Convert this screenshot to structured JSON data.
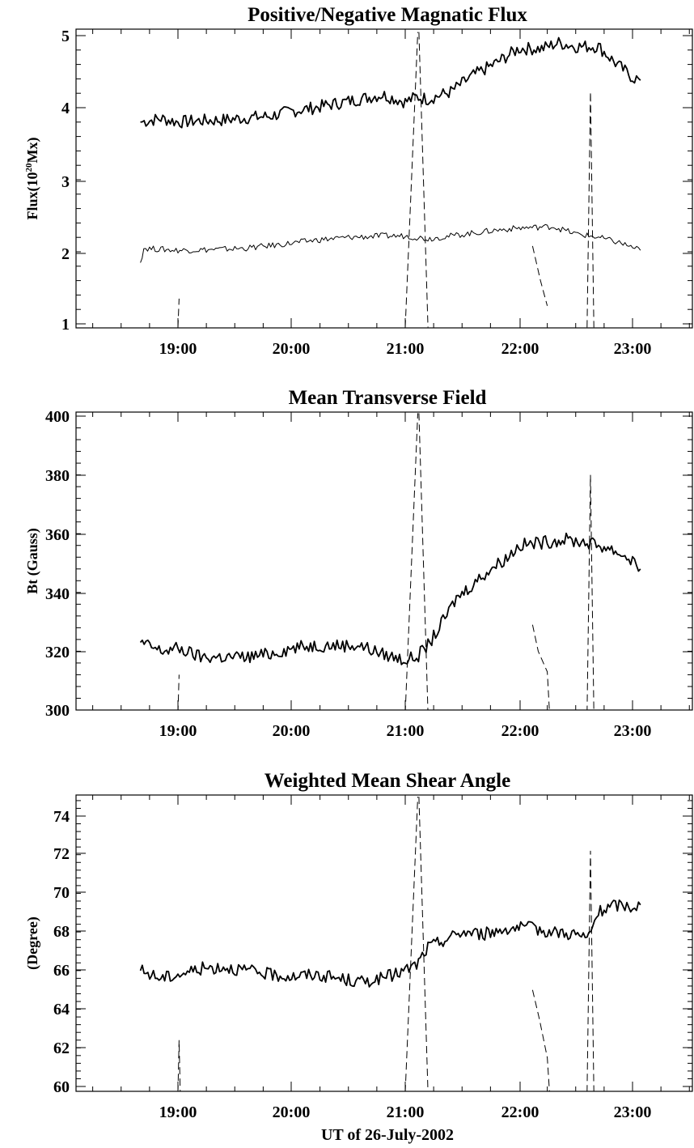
{
  "chart_data": [
    {
      "type": "line",
      "title": "Positive/Negative Magnatic Flux",
      "ylabel_parts": [
        "Flux(10",
        "20",
        "Mx)"
      ],
      "xlabel": "",
      "x_ticklabels": [
        "19:00",
        "20:00",
        "21:00",
        "22:00",
        "23:00"
      ],
      "y_ticklabels": [
        "1",
        "2",
        "3",
        "4",
        "5"
      ],
      "xlim_hours": [
        18.1,
        23.65
      ],
      "ylim": [
        0.95,
        5.05
      ],
      "series": [
        {
          "style": "solid-thick",
          "points": [
            [
              18.67,
              3.8
            ],
            [
              18.85,
              3.85
            ],
            [
              19.0,
              3.8
            ],
            [
              19.2,
              3.82
            ],
            [
              19.4,
              3.83
            ],
            [
              19.6,
              3.86
            ],
            [
              19.8,
              3.88
            ],
            [
              20.0,
              3.95
            ],
            [
              20.2,
              4.0
            ],
            [
              20.4,
              4.06
            ],
            [
              20.6,
              4.12
            ],
            [
              20.8,
              4.18
            ],
            [
              21.0,
              4.08
            ],
            [
              21.1,
              4.15
            ],
            [
              21.2,
              4.12
            ],
            [
              21.4,
              4.22
            ],
            [
              21.6,
              4.45
            ],
            [
              21.8,
              4.62
            ],
            [
              22.0,
              4.82
            ],
            [
              22.2,
              4.82
            ],
            [
              22.35,
              4.9
            ],
            [
              22.5,
              4.85
            ],
            [
              22.7,
              4.85
            ],
            [
              22.85,
              4.62
            ],
            [
              23.0,
              4.42
            ],
            [
              23.07,
              4.38
            ]
          ]
        },
        {
          "style": "solid-thin",
          "points": [
            [
              18.67,
              1.85
            ],
            [
              18.7,
              2.05
            ],
            [
              19.0,
              2.02
            ],
            [
              19.3,
              2.03
            ],
            [
              19.6,
              2.05
            ],
            [
              19.9,
              2.1
            ],
            [
              20.2,
              2.16
            ],
            [
              20.5,
              2.2
            ],
            [
              20.8,
              2.22
            ],
            [
              21.0,
              2.22
            ],
            [
              21.2,
              2.18
            ],
            [
              21.5,
              2.24
            ],
            [
              21.8,
              2.3
            ],
            [
              22.0,
              2.33
            ],
            [
              22.3,
              2.35
            ],
            [
              22.5,
              2.25
            ],
            [
              22.7,
              2.2
            ],
            [
              22.9,
              2.12
            ],
            [
              23.07,
              2.02
            ]
          ]
        },
        {
          "style": "dashed",
          "segments": [
            [
              [
                19.0,
                0.95
              ],
              [
                19.01,
                1.35
              ]
            ],
            [
              [
                21.0,
                0.95
              ],
              [
                21.11,
                5.05
              ]
            ],
            [
              [
                21.12,
                5.05
              ],
              [
                21.2,
                0.95
              ]
            ],
            [
              [
                22.12,
                2.08
              ],
              [
                22.19,
                1.6
              ],
              [
                22.25,
                1.25
              ]
            ],
            [
              [
                22.6,
                0.95
              ],
              [
                22.63,
                4.22
              ],
              [
                22.66,
                0.95
              ]
            ]
          ]
        }
      ]
    },
    {
      "type": "line",
      "title": "Mean Transverse Field",
      "ylabel": "Bt (Gauss)",
      "xlabel": "",
      "x_ticklabels": [
        "19:00",
        "20:00",
        "21:00",
        "22:00",
        "23:00"
      ],
      "y_ticklabels": [
        "300",
        "320",
        "340",
        "360",
        "380",
        "400"
      ],
      "xlim_hours": [
        18.1,
        23.65
      ],
      "ylim": [
        299,
        401
      ],
      "series": [
        {
          "style": "solid",
          "points": [
            [
              18.67,
              323
            ],
            [
              18.85,
              320
            ],
            [
              19.0,
              321
            ],
            [
              19.2,
              318
            ],
            [
              19.4,
              318
            ],
            [
              19.6,
              318
            ],
            [
              19.8,
              319
            ],
            [
              20.0,
              321
            ],
            [
              20.2,
              322
            ],
            [
              20.4,
              322
            ],
            [
              20.6,
              322
            ],
            [
              20.8,
              319
            ],
            [
              21.0,
              317
            ],
            [
              21.1,
              318
            ],
            [
              21.2,
              322
            ],
            [
              21.3,
              328
            ],
            [
              21.45,
              338
            ],
            [
              21.6,
              343
            ],
            [
              21.75,
              348
            ],
            [
              21.9,
              352
            ],
            [
              22.0,
              356
            ],
            [
              22.2,
              357
            ],
            [
              22.4,
              358
            ],
            [
              22.6,
              357
            ],
            [
              22.8,
              355
            ],
            [
              23.0,
              351
            ],
            [
              23.07,
              348
            ]
          ]
        },
        {
          "style": "dashed",
          "segments": [
            [
              [
                19.0,
                299
              ],
              [
                19.01,
                312
              ]
            ],
            [
              [
                21.0,
                299
              ],
              [
                21.11,
                401
              ]
            ],
            [
              [
                21.12,
                401
              ],
              [
                21.2,
                299
              ]
            ],
            [
              [
                22.12,
                329
              ],
              [
                22.17,
                320
              ],
              [
                22.25,
                313
              ],
              [
                22.27,
                299
              ]
            ],
            [
              [
                22.6,
                299
              ],
              [
                22.63,
                380
              ],
              [
                22.66,
                299
              ]
            ]
          ]
        }
      ]
    },
    {
      "type": "line",
      "title": "Weighted Mean Shear Angle",
      "ylabel": "(Degree)",
      "xlabel": "UT of 26-July-2002",
      "x_ticklabels": [
        "19:00",
        "20:00",
        "21:00",
        "22:00",
        "23:00"
      ],
      "y_ticklabels": [
        "60",
        "62",
        "64",
        "66",
        "68",
        "70",
        "72",
        "74"
      ],
      "xlim_hours": [
        18.1,
        23.65
      ],
      "ylim": [
        59.7,
        75.0
      ],
      "series": [
        {
          "style": "solid",
          "points": [
            [
              18.67,
              66.0
            ],
            [
              18.85,
              65.6
            ],
            [
              19.0,
              65.8
            ],
            [
              19.2,
              66.1
            ],
            [
              19.4,
              66.2
            ],
            [
              19.6,
              66.0
            ],
            [
              19.8,
              65.8
            ],
            [
              20.0,
              65.7
            ],
            [
              20.2,
              65.8
            ],
            [
              20.4,
              65.6
            ],
            [
              20.6,
              65.4
            ],
            [
              20.8,
              65.6
            ],
            [
              21.0,
              66.0
            ],
            [
              21.1,
              66.3
            ],
            [
              21.2,
              67.2
            ],
            [
              21.35,
              67.6
            ],
            [
              21.5,
              68.0
            ],
            [
              21.7,
              67.9
            ],
            [
              21.9,
              68.2
            ],
            [
              22.1,
              68.2
            ],
            [
              22.3,
              68.0
            ],
            [
              22.5,
              67.9
            ],
            [
              22.6,
              67.6
            ],
            [
              22.7,
              69.0
            ],
            [
              22.85,
              69.4
            ],
            [
              23.0,
              69.3
            ],
            [
              23.07,
              69.4
            ]
          ]
        },
        {
          "style": "dashed",
          "segments": [
            [
              [
                19.0,
                59.7
              ],
              [
                19.01,
                62.4
              ],
              [
                19.02,
                59.7
              ]
            ],
            [
              [
                21.0,
                59.7
              ],
              [
                21.11,
                75.0
              ]
            ],
            [
              [
                21.12,
                75.0
              ],
              [
                21.2,
                59.7
              ]
            ],
            [
              [
                22.12,
                65.0
              ],
              [
                22.18,
                63.5
              ],
              [
                22.25,
                61.5
              ],
              [
                22.27,
                59.7
              ]
            ],
            [
              [
                22.6,
                59.7
              ],
              [
                22.63,
                72.2
              ],
              [
                22.66,
                59.7
              ]
            ]
          ]
        }
      ]
    }
  ]
}
